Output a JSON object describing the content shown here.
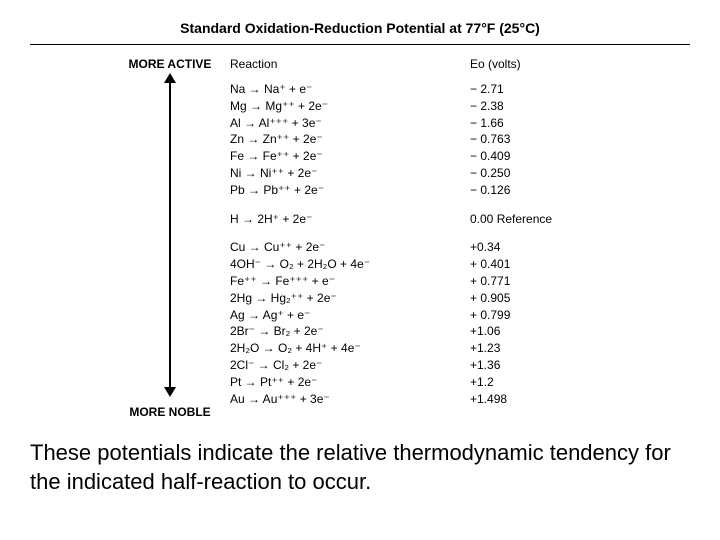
{
  "title": "Standard Oxidation-Reduction Potential at 77°F (25°C)",
  "labels": {
    "more_active": "MORE ACTIVE",
    "more_noble": "MORE NOBLE",
    "reaction_header": "Reaction",
    "eo_header": "Eo (volts)"
  },
  "group1": {
    "reactions": [
      "Na → Na⁺ + e⁻",
      "Mg → Mg⁺⁺ + 2e⁻",
      "Al → Al⁺⁺⁺ + 3e⁻",
      "Zn → Zn⁺⁺ + 2e⁻",
      "Fe → Fe⁺⁺ + 2e⁻",
      "Ni → Ni⁺⁺ + 2e⁻",
      "Pb → Pb⁺⁺ + 2e⁻"
    ],
    "values": [
      "− 2.71",
      "− 2.38",
      "− 1.66",
      "− 0.763",
      "− 0.409",
      "− 0.250",
      "− 0.126"
    ]
  },
  "group2": {
    "reactions": [
      "H → 2H⁺ + 2e⁻"
    ],
    "values": [
      "0.00 Reference"
    ]
  },
  "group3": {
    "reactions": [
      "Cu → Cu⁺⁺ + 2e⁻",
      "4OH⁻ → O₂ + 2H₂O + 4e⁻",
      "Fe⁺⁺ → Fe⁺⁺⁺ + e⁻",
      "2Hg → Hg₂⁺⁺ + 2e⁻",
      "Ag → Ag⁺ + e⁻",
      "2Br⁻ → Br₂ + 2e⁻",
      "2H₂O → O₂ + 4H⁺ + 4e⁻",
      "2Cl⁻ → Cl₂ + 2e⁻",
      "Pt → Pt⁺⁺ + 2e⁻",
      "Au → Au⁺⁺⁺ + 3e⁻"
    ],
    "values": [
      "+0.34",
      "+ 0.401",
      "+ 0.771",
      "+ 0.905",
      "+ 0.799",
      "+1.06",
      "+1.23",
      "+1.36",
      "+1.2",
      "+1.498"
    ]
  },
  "caption": "These potentials indicate the relative thermodynamic tendency for the indicated half-reaction to occur.",
  "style": {
    "background_color": "#ffffff",
    "text_color": "#000000",
    "title_fontsize": 14,
    "body_fontsize": 12,
    "caption_fontsize": 22,
    "font_family": "Arial"
  }
}
